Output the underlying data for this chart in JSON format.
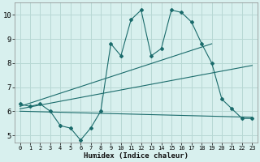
{
  "xlabel": "Humidex (Indice chaleur)",
  "ylabel": "",
  "bg_color": "#d8f0ee",
  "grid_color": "#b8d8d4",
  "line_color": "#1a6b6b",
  "xlim": [
    -0.5,
    23.5
  ],
  "ylim": [
    4.7,
    10.5
  ],
  "xticks": [
    0,
    1,
    2,
    3,
    4,
    5,
    6,
    7,
    8,
    9,
    10,
    11,
    12,
    13,
    14,
    15,
    16,
    17,
    18,
    19,
    20,
    21,
    22,
    23
  ],
  "yticks": [
    5,
    6,
    7,
    8,
    9,
    10
  ],
  "series1_x": [
    0,
    1,
    2,
    3,
    4,
    5,
    6,
    7,
    8,
    9,
    10,
    11,
    12,
    13,
    14,
    15,
    16,
    17,
    18,
    19,
    20,
    21,
    22,
    23
  ],
  "series1_y": [
    6.3,
    6.2,
    6.3,
    6.0,
    5.4,
    5.3,
    4.8,
    5.3,
    6.0,
    8.8,
    8.3,
    9.8,
    10.2,
    8.3,
    8.6,
    10.2,
    10.1,
    9.7,
    8.8,
    8.0,
    6.5,
    6.1,
    5.7,
    5.7
  ],
  "series2_x": [
    0,
    19
  ],
  "series2_y": [
    6.2,
    8.8
  ],
  "series3_x": [
    0,
    23
  ],
  "series3_y": [
    6.1,
    7.9
  ],
  "series4_x": [
    0,
    23
  ],
  "series4_y": [
    6.0,
    5.75
  ]
}
